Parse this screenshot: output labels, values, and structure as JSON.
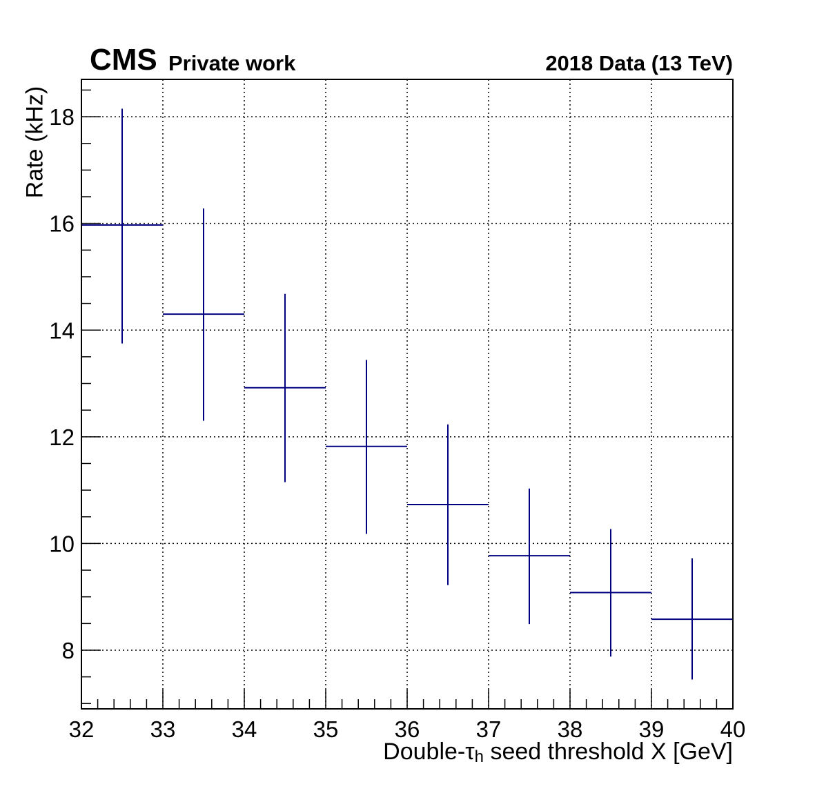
{
  "header": {
    "experiment": "CMS",
    "status": "Private work",
    "run_label": "2018 Data (13 TeV)"
  },
  "chart_data": {
    "type": "scatter",
    "title": "",
    "xlabel_pre": "Double-τ",
    "xlabel_sub": "h",
    "xlabel_post": " seed threshold X [GeV]",
    "ylabel": "Rate (kHz)",
    "xlim": [
      32,
      40
    ],
    "ylim": [
      6.9,
      18.7
    ],
    "xticks": [
      32,
      33,
      34,
      35,
      36,
      37,
      38,
      39,
      40
    ],
    "yticks": [
      8,
      10,
      12,
      14,
      16,
      18
    ],
    "grid": true,
    "series": [
      {
        "color": "#000080",
        "points": [
          {
            "x": 32.5,
            "xerr": 0.5,
            "y": 15.97,
            "ylow": 13.75,
            "yhigh": 18.15
          },
          {
            "x": 33.5,
            "xerr": 0.5,
            "y": 14.3,
            "ylow": 12.3,
            "yhigh": 16.28
          },
          {
            "x": 34.5,
            "xerr": 0.5,
            "y": 12.92,
            "ylow": 11.15,
            "yhigh": 14.68
          },
          {
            "x": 35.5,
            "xerr": 0.5,
            "y": 11.82,
            "ylow": 10.18,
            "yhigh": 13.44
          },
          {
            "x": 36.5,
            "xerr": 0.5,
            "y": 10.73,
            "ylow": 9.22,
            "yhigh": 12.23
          },
          {
            "x": 37.5,
            "xerr": 0.5,
            "y": 9.77,
            "ylow": 8.49,
            "yhigh": 11.03
          },
          {
            "x": 38.5,
            "xerr": 0.5,
            "y": 9.08,
            "ylow": 7.88,
            "yhigh": 10.27
          },
          {
            "x": 39.5,
            "xerr": 0.5,
            "y": 8.58,
            "ylow": 7.45,
            "yhigh": 9.72
          }
        ]
      }
    ]
  }
}
